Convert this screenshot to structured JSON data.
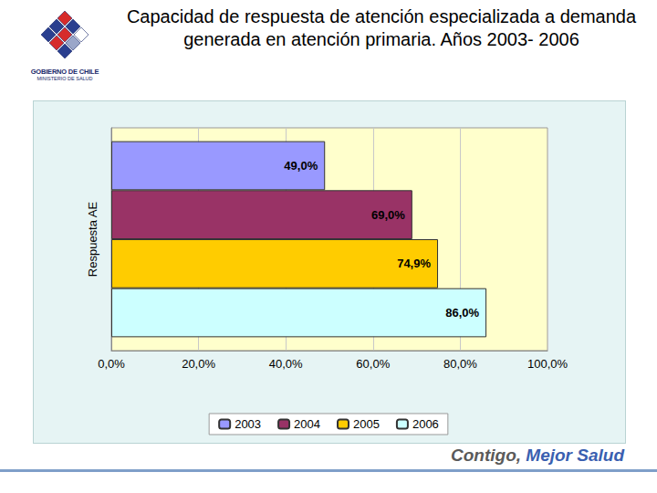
{
  "header": {
    "logo": [
      "GOBIERNO DE CHILE",
      "MINISTERIO DE SALUD"
    ]
  },
  "footer": [
    "Contigo,",
    "Mejor Salud"
  ],
  "chart_data": {
    "type": "bar",
    "title": "Capacidad de respuesta de  atención especializada a demanda generada en  atención primaria. Años 2003- 2006",
    "orientation": "horizontal",
    "categories": [
      "Respuesta AE"
    ],
    "series": [
      {
        "name": "2003",
        "color": "#9999ff",
        "values": [
          49.0
        ],
        "value_labels": [
          "49,0%"
        ]
      },
      {
        "name": "2004",
        "color": "#993366",
        "values": [
          69.0
        ],
        "value_labels": [
          "69,0%"
        ]
      },
      {
        "name": "2005",
        "color": "#ffcc00",
        "values": [
          74.9
        ],
        "value_labels": [
          "74,9%"
        ]
      },
      {
        "name": "2006",
        "color": "#ccffff",
        "values": [
          86.0
        ],
        "value_labels": [
          "86,0%"
        ]
      }
    ],
    "xlim": [
      0,
      100
    ],
    "xticks": [
      {
        "value": 0,
        "label": "0,0%"
      },
      {
        "value": 20,
        "label": "20,0%"
      },
      {
        "value": 40,
        "label": "40,0%"
      },
      {
        "value": 60,
        "label": "60,0%"
      },
      {
        "value": 80,
        "label": "80,0%"
      },
      {
        "value": 100,
        "label": "100,0%"
      }
    ],
    "grid": true,
    "legend": "bottom",
    "data_labels": true
  }
}
